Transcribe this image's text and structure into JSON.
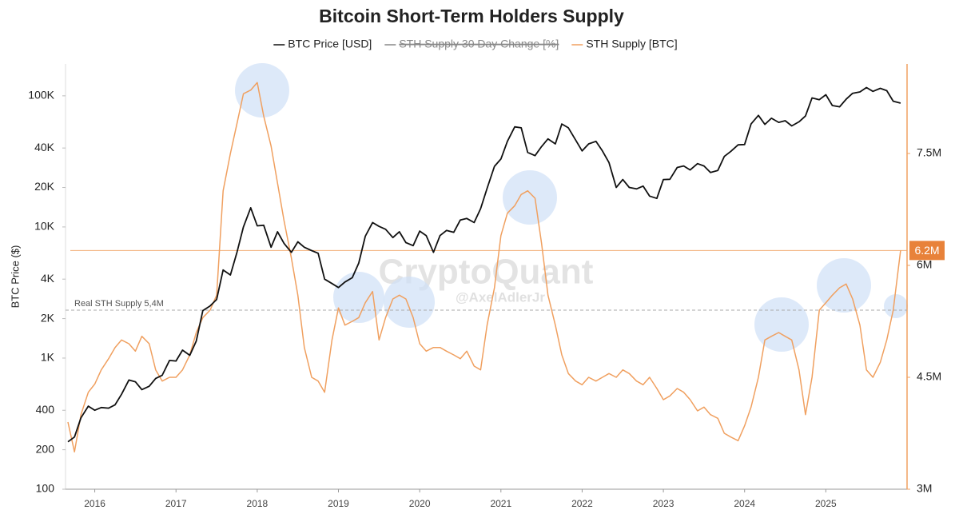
{
  "chart_data": {
    "type": "line",
    "title": "Bitcoin Short-Term Holders Supply",
    "ylabel": "BTC Price ($)",
    "watermark": [
      "CryptoQuant",
      "@AxelAdlerJr"
    ],
    "x": [
      2015.67,
      2015.75,
      2015.83,
      2015.92,
      2016,
      2016.08,
      2016.17,
      2016.25,
      2016.33,
      2016.42,
      2016.5,
      2016.58,
      2016.67,
      2016.75,
      2016.83,
      2016.92,
      2017,
      2017.08,
      2017.17,
      2017.25,
      2017.33,
      2017.42,
      2017.5,
      2017.58,
      2017.67,
      2017.75,
      2017.83,
      2017.92,
      2018,
      2018.08,
      2018.17,
      2018.25,
      2018.33,
      2018.42,
      2018.5,
      2018.58,
      2018.67,
      2018.75,
      2018.83,
      2018.92,
      2019,
      2019.08,
      2019.17,
      2019.25,
      2019.33,
      2019.42,
      2019.5,
      2019.58,
      2019.67,
      2019.75,
      2019.83,
      2019.92,
      2020,
      2020.08,
      2020.17,
      2020.25,
      2020.33,
      2020.42,
      2020.5,
      2020.58,
      2020.67,
      2020.75,
      2020.83,
      2020.92,
      2021,
      2021.08,
      2021.17,
      2021.25,
      2021.33,
      2021.42,
      2021.5,
      2021.58,
      2021.67,
      2021.75,
      2021.83,
      2021.92,
      2022,
      2022.08,
      2022.17,
      2022.25,
      2022.33,
      2022.42,
      2022.5,
      2022.58,
      2022.67,
      2022.75,
      2022.83,
      2022.92,
      2023,
      2023.08,
      2023.17,
      2023.25,
      2023.33,
      2023.42,
      2023.5,
      2023.58,
      2023.67,
      2023.75,
      2023.83,
      2023.92,
      2024,
      2024.08,
      2024.17,
      2024.25,
      2024.33,
      2024.42,
      2024.5,
      2024.58,
      2024.67,
      2024.75,
      2024.83,
      2024.92,
      2025,
      2025.08,
      2025.17,
      2025.25,
      2025.33,
      2025.42,
      2025.5,
      2025.58,
      2025.67,
      2025.75,
      2025.83,
      2025.92
    ],
    "series": [
      {
        "name": "BTC Price [USD]",
        "color": "#111111",
        "axis": "y",
        "values": [
          230,
          250,
          350,
          430,
          400,
          420,
          415,
          440,
          530,
          680,
          660,
          575,
          610,
          700,
          740,
          960,
          950,
          1150,
          1050,
          1350,
          2300,
          2500,
          2800,
          4700,
          4300,
          6400,
          10000,
          14000,
          10200,
          10300,
          7000,
          9200,
          7500,
          6400,
          7700,
          7000,
          6600,
          6300,
          4000,
          3700,
          3450,
          3800,
          4100,
          5300,
          8500,
          10800,
          10100,
          9600,
          8300,
          9200,
          7600,
          7200,
          9300,
          8600,
          6400,
          8600,
          9400,
          9100,
          11300,
          11600,
          10800,
          13800,
          19700,
          29000,
          33000,
          45000,
          58000,
          57000,
          37000,
          35000,
          41000,
          47000,
          43000,
          61000,
          57000,
          46000,
          38000,
          43000,
          45000,
          38000,
          31000,
          20000,
          23000,
          20000,
          19500,
          20500,
          17200,
          16500,
          23000,
          23100,
          28400,
          29200,
          27200,
          30400,
          29200,
          26000,
          27000,
          34500,
          37700,
          42300,
          42500,
          61000,
          71000,
          60600,
          67500,
          62700,
          64600,
          59000,
          63300,
          70200,
          96400,
          93400,
          102000,
          84300,
          82500,
          94200,
          104600,
          107100,
          115700,
          108200,
          114000,
          109500,
          91000,
          88000
        ]
      },
      {
        "name": "STH Supply 30 Day Change [%]",
        "color": "#888888",
        "visible": false
      },
      {
        "name": "STH Supply [BTC]",
        "color": "#f0a060",
        "axis": "y2",
        "values": [
          3900000,
          3500000,
          4000000,
          4300000,
          4410000,
          4600000,
          4750000,
          4900000,
          5000000,
          4950000,
          4850000,
          5050000,
          4950000,
          4600000,
          4450000,
          4500000,
          4500000,
          4600000,
          4800000,
          5100000,
          5300000,
          5400000,
          5600000,
          7000000,
          7500000,
          7900000,
          8300000,
          8350000,
          8450000,
          8000000,
          7600000,
          7100000,
          6600000,
          6100000,
          5600000,
          4900000,
          4500000,
          4450000,
          4300000,
          5000000,
          5430000,
          5200000,
          5250000,
          5300000,
          5500000,
          5650000,
          5000000,
          5300000,
          5550000,
          5600000,
          5550000,
          5300000,
          4950000,
          4850000,
          4900000,
          4900000,
          4850000,
          4800000,
          4750000,
          4850000,
          4650000,
          4600000,
          5200000,
          5700000,
          6400000,
          6700000,
          6800000,
          6950000,
          7000000,
          6900000,
          6300000,
          5600000,
          5200000,
          4800000,
          4550000,
          4450000,
          4400000,
          4500000,
          4450000,
          4500000,
          4550000,
          4500000,
          4600000,
          4550000,
          4450000,
          4400000,
          4500000,
          4350000,
          4200000,
          4250000,
          4350000,
          4300000,
          4200000,
          4050000,
          4100000,
          4000000,
          3950000,
          3750000,
          3700000,
          3650000,
          3850000,
          4100000,
          4500000,
          5000000,
          5050000,
          5100000,
          5050000,
          5000000,
          4600000,
          4000000,
          4500000,
          5400000,
          5500000,
          5600000,
          5700000,
          5750000,
          5550000,
          5200000,
          4600000,
          4500000,
          4700000,
          5000000,
          5400000,
          6200000
        ]
      }
    ],
    "xlim": [
      2015.64,
      2026.0
    ],
    "xticks": [
      2016,
      2017,
      2018,
      2019,
      2020,
      2021,
      2022,
      2023,
      2024,
      2025
    ],
    "ylim": [
      100,
      175000
    ],
    "log_y": true,
    "yticks": [
      100,
      200,
      400,
      {
        "value": 1000,
        "label": "1K"
      },
      {
        "value": 2000,
        "label": "2K"
      },
      {
        "value": 4000,
        "label": "4K"
      },
      {
        "value": 10000,
        "label": "10K"
      },
      {
        "value": 20000,
        "label": "20K"
      },
      {
        "value": 40000,
        "label": "40K"
      },
      {
        "value": 100000,
        "label": "100K"
      }
    ],
    "y2lim": [
      3000000,
      8700000
    ],
    "y2ticks": [
      {
        "value": 3000000,
        "label": "3M"
      },
      {
        "value": 4500000,
        "label": "4.5M"
      },
      {
        "value": 6000000,
        "label": "6M"
      },
      {
        "value": 7500000,
        "label": "7.5M"
      }
    ],
    "reference_line": {
      "label": "Real STH Supply 5,4M",
      "value": 5400000,
      "axis": "y2"
    },
    "current_value": {
      "label": "6.2M",
      "value": 6200000,
      "axis": "y2"
    },
    "legend": "top"
  }
}
